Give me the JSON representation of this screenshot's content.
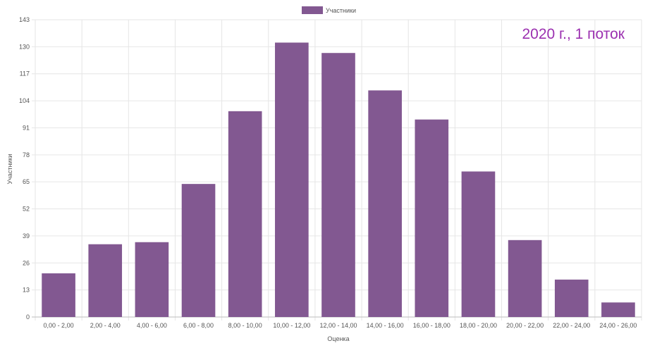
{
  "colors": {
    "bar": "#825891",
    "annotation": "#9b30b0",
    "grid": "#e6e6e6"
  },
  "chart_data": {
    "type": "bar",
    "categories": [
      "0,00 - 2,00",
      "2,00 - 4,00",
      "4,00 - 6,00",
      "6,00 - 8,00",
      "8,00 - 10,00",
      "10,00 - 12,00",
      "12,00 - 14,00",
      "14,00 - 16,00",
      "16,00 - 18,00",
      "18,00 - 20,00",
      "20,00 - 22,00",
      "22,00 - 24,00",
      "24,00 - 26,00"
    ],
    "series": [
      {
        "name": "Участники",
        "values": [
          21,
          35,
          36,
          64,
          99,
          132,
          127,
          109,
          95,
          70,
          37,
          18,
          7
        ]
      }
    ],
    "xlabel": "Оценка",
    "ylabel": "Участники",
    "ylim": [
      0,
      143
    ],
    "yticks": [
      0,
      13,
      26,
      39,
      52,
      65,
      78,
      91,
      104,
      117,
      130,
      143
    ],
    "grid": true,
    "legend_position": "top-center",
    "annotation": "2020 г., 1 поток",
    "annotation_position": "top-right"
  }
}
